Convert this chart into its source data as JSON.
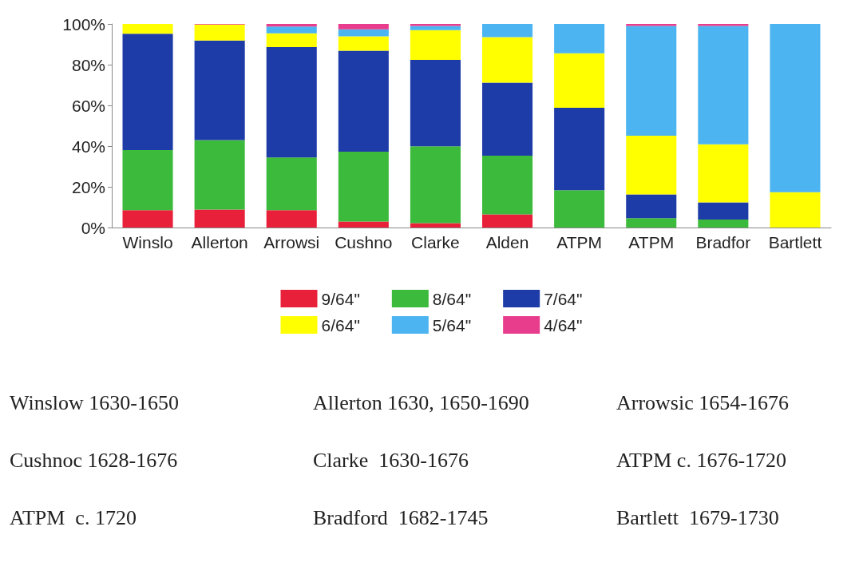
{
  "chart_data": {
    "type": "bar",
    "stacked": true,
    "categories": [
      "Winslo",
      "Allerton",
      "Arrowsi",
      "Cushno",
      "Clarke",
      "Alden",
      "ATPM",
      "ATPM",
      "Bradfor",
      "Bartlett"
    ],
    "series": [
      {
        "name": "9/64\"",
        "color": "#e8203a",
        "values": [
          8.5,
          8.8,
          8.5,
          2.9,
          2.2,
          6.5,
          0,
          0,
          0,
          0
        ]
      },
      {
        "name": "8/64\"",
        "color": "#3cba3c",
        "values": [
          29.5,
          34.1,
          25.9,
          34.4,
          37.7,
          28.8,
          18.3,
          4.6,
          3.9,
          0
        ]
      },
      {
        "name": "7/64\"",
        "color": "#1e3ca8",
        "values": [
          57.2,
          49,
          54.2,
          49.6,
          42.5,
          35.9,
          40.5,
          11.7,
          8.5,
          0
        ]
      },
      {
        "name": "6/64\"",
        "color": "#ffff00",
        "values": [
          4.8,
          7.8,
          6.8,
          7,
          14.6,
          22.3,
          26.8,
          28.8,
          28.5,
          17.4
        ]
      },
      {
        "name": "5/64\"",
        "color": "#4cb4f0",
        "values": [
          0,
          0,
          3.3,
          3.5,
          2,
          6.5,
          14.4,
          53.9,
          58.1,
          82.6
        ]
      },
      {
        "name": "4/64\"",
        "color": "#e83c8c",
        "values": [
          0,
          0.3,
          1.3,
          2.6,
          1,
          0,
          0,
          1,
          1,
          0
        ]
      }
    ],
    "ylim": [
      0,
      100
    ],
    "yticks": [
      {
        "value": 0,
        "label": "0%"
      },
      {
        "value": 20,
        "label": "20%"
      },
      {
        "value": 40,
        "label": "40%"
      },
      {
        "value": 60,
        "label": "60%"
      },
      {
        "value": 80,
        "label": "80%"
      },
      {
        "value": 100,
        "label": "100%"
      }
    ],
    "grid": false,
    "legend": "bottom",
    "annotations": [
      "Winslow 1630-1650",
      "Allerton 1630, 1650-1690",
      "Arrowsic 1654-1676",
      "Cushnoc 1628-1676",
      "Clarke  1630-1676",
      "ATPM c. 1676-1720",
      "ATPM  c. 1720",
      "Bradford  1682-1745",
      "Bartlett  1679-1730"
    ]
  }
}
